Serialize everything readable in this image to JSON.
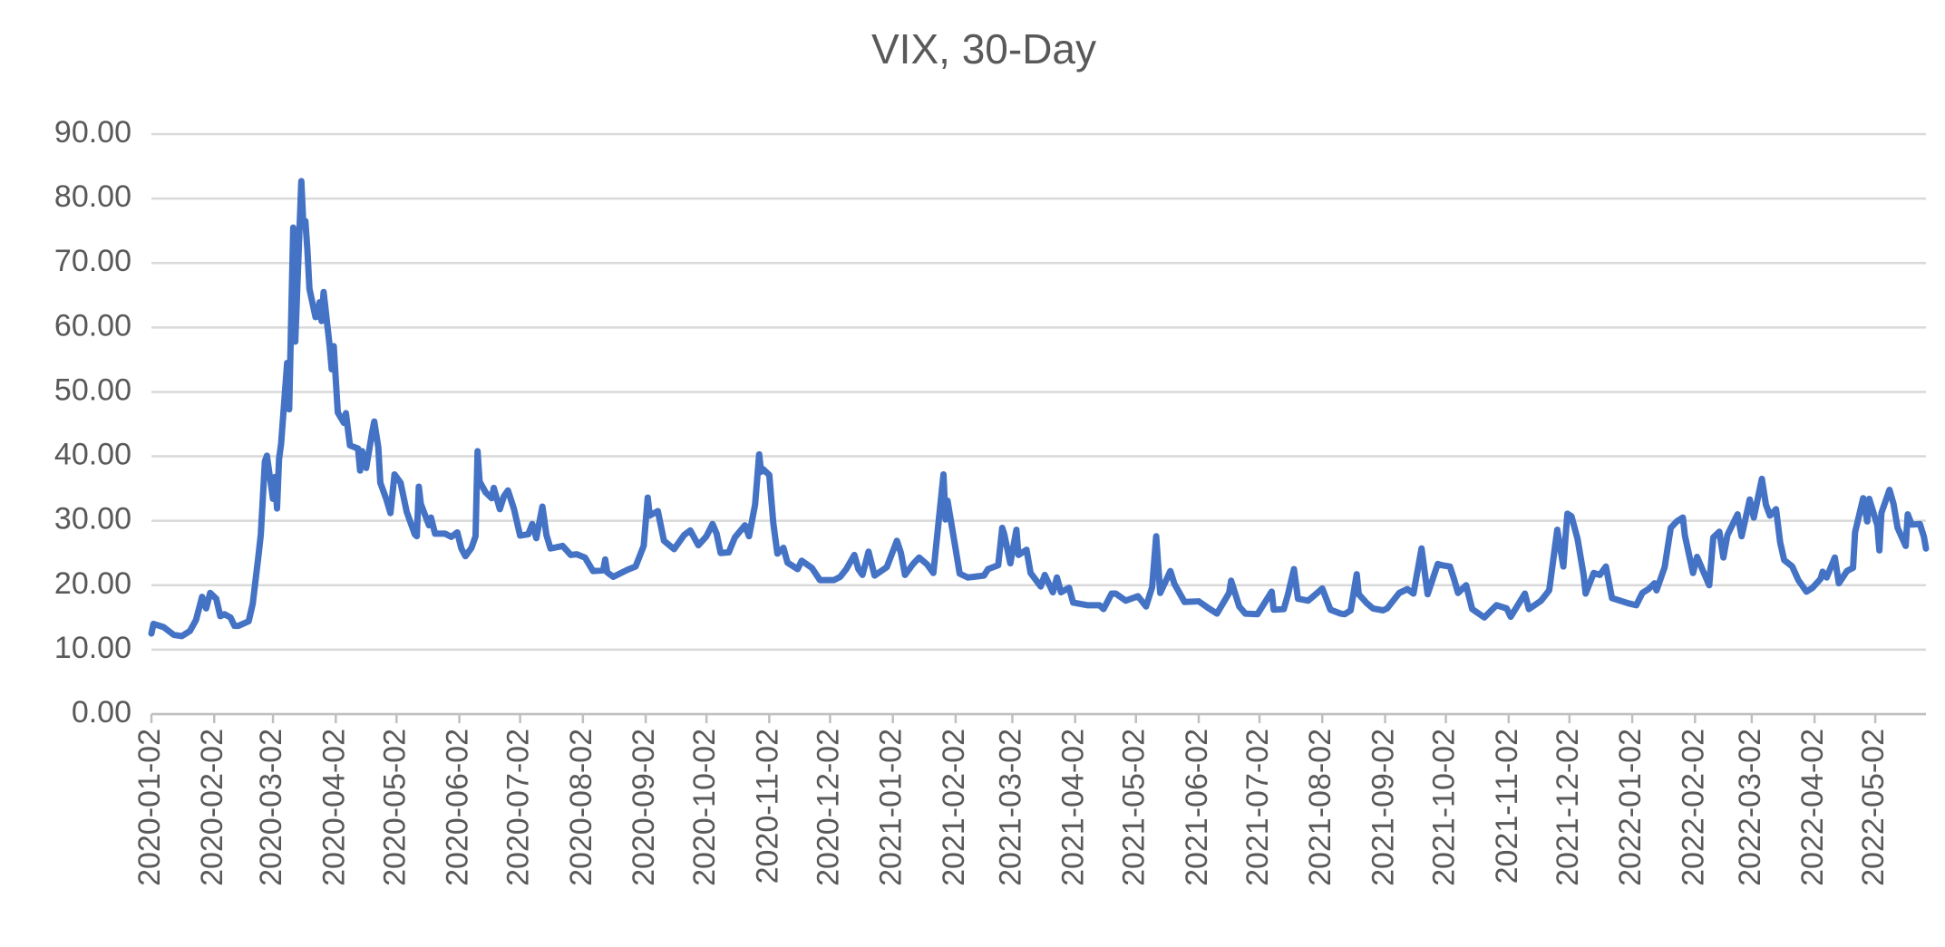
{
  "chart_data": {
    "type": "line",
    "title": "VIX, 30-Day",
    "color": "#4472c4",
    "grid": true,
    "xlim": [
      "2020-01-02",
      "2022-05-27"
    ],
    "xticks": [
      "2020-01-02",
      "2020-02-02",
      "2020-03-02",
      "2020-04-02",
      "2020-05-02",
      "2020-06-02",
      "2020-07-02",
      "2020-08-02",
      "2020-09-02",
      "2020-10-02",
      "2020-11-02",
      "2020-12-02",
      "2021-01-02",
      "2021-02-02",
      "2021-03-02",
      "2021-04-02",
      "2021-05-02",
      "2021-06-02",
      "2021-07-02",
      "2021-08-02",
      "2021-09-02",
      "2021-10-02",
      "2021-11-02",
      "2021-12-02",
      "2022-01-02",
      "2022-02-02",
      "2022-03-02",
      "2022-04-02",
      "2022-05-02"
    ],
    "ylim": [
      0,
      90
    ],
    "yticks": [
      {
        "value": 0,
        "label": "0.00"
      },
      {
        "value": 10,
        "label": "10.00"
      },
      {
        "value": 20,
        "label": "20.00"
      },
      {
        "value": 30,
        "label": "30.00"
      },
      {
        "value": 40,
        "label": "40.00"
      },
      {
        "value": 50,
        "label": "50.00"
      },
      {
        "value": 60,
        "label": "60.00"
      },
      {
        "value": 70,
        "label": "70.00"
      },
      {
        "value": 80,
        "label": "80.00"
      },
      {
        "value": 90,
        "label": "90.00"
      }
    ],
    "x": [
      "2020-01-02",
      "2020-01-03",
      "2020-01-08",
      "2020-01-13",
      "2020-01-17",
      "2020-01-21",
      "2020-01-24",
      "2020-01-27",
      "2020-01-29",
      "2020-01-31",
      "2020-02-03",
      "2020-02-05",
      "2020-02-07",
      "2020-02-10",
      "2020-02-12",
      "2020-02-14",
      "2020-02-19",
      "2020-02-21",
      "2020-02-24",
      "2020-02-25",
      "2020-02-27",
      "2020-02-28",
      "2020-03-02",
      "2020-03-03",
      "2020-03-04",
      "2020-03-05",
      "2020-03-06",
      "2020-03-09",
      "2020-03-10",
      "2020-03-12",
      "2020-03-13",
      "2020-03-16",
      "2020-03-17",
      "2020-03-18",
      "2020-03-19",
      "2020-03-20",
      "2020-03-23",
      "2020-03-24",
      "2020-03-25",
      "2020-03-26",
      "2020-03-27",
      "2020-03-30",
      "2020-03-31",
      "2020-04-01",
      "2020-04-03",
      "2020-04-06",
      "2020-04-07",
      "2020-04-09",
      "2020-04-13",
      "2020-04-14",
      "2020-04-15",
      "2020-04-17",
      "2020-04-20",
      "2020-04-21",
      "2020-04-23",
      "2020-04-24",
      "2020-04-27",
      "2020-04-29",
      "2020-04-30",
      "2020-05-01",
      "2020-05-04",
      "2020-05-07",
      "2020-05-11",
      "2020-05-12",
      "2020-05-13",
      "2020-05-14",
      "2020-05-18",
      "2020-05-19",
      "2020-05-21",
      "2020-05-26",
      "2020-05-29",
      "2020-06-01",
      "2020-06-03",
      "2020-06-05",
      "2020-06-08",
      "2020-06-10",
      "2020-06-11",
      "2020-06-12",
      "2020-06-15",
      "2020-06-18",
      "2020-06-19",
      "2020-06-22",
      "2020-06-24",
      "2020-06-26",
      "2020-06-29",
      "2020-07-02",
      "2020-07-06",
      "2020-07-08",
      "2020-07-10",
      "2020-07-13",
      "2020-07-15",
      "2020-07-17",
      "2020-07-23",
      "2020-07-27",
      "2020-07-30",
      "2020-08-03",
      "2020-08-07",
      "2020-08-12",
      "2020-08-13",
      "2020-08-14",
      "2020-08-17",
      "2020-08-24",
      "2020-08-28",
      "2020-09-01",
      "2020-09-03",
      "2020-09-04",
      "2020-09-08",
      "2020-09-11",
      "2020-09-16",
      "2020-09-21",
      "2020-09-24",
      "2020-09-28",
      "2020-10-02",
      "2020-10-05",
      "2020-10-07",
      "2020-10-09",
      "2020-10-13",
      "2020-10-16",
      "2020-10-21",
      "2020-10-23",
      "2020-10-26",
      "2020-10-28",
      "2020-10-29",
      "2020-10-30",
      "2020-11-02",
      "2020-11-04",
      "2020-11-06",
      "2020-11-09",
      "2020-11-11",
      "2020-11-16",
      "2020-11-18",
      "2020-11-23",
      "2020-11-27",
      "2020-12-04",
      "2020-12-07",
      "2020-12-10",
      "2020-12-14",
      "2020-12-16",
      "2020-12-18",
      "2020-12-21",
      "2020-12-24",
      "2020-12-30",
      "2021-01-04",
      "2021-01-06",
      "2021-01-08",
      "2021-01-12",
      "2021-01-15",
      "2021-01-19",
      "2021-01-22",
      "2021-01-27",
      "2021-01-28",
      "2021-01-29",
      "2021-02-02",
      "2021-02-04",
      "2021-02-08",
      "2021-02-11",
      "2021-02-16",
      "2021-02-18",
      "2021-02-23",
      "2021-02-25",
      "2021-02-26",
      "2021-03-01",
      "2021-03-04",
      "2021-03-05",
      "2021-03-09",
      "2021-03-11",
      "2021-03-16",
      "2021-03-18",
      "2021-03-22",
      "2021-03-24",
      "2021-03-26",
      "2021-03-30",
      "2021-04-01",
      "2021-04-08",
      "2021-04-14",
      "2021-04-16",
      "2021-04-20",
      "2021-04-22",
      "2021-04-27",
      "2021-05-03",
      "2021-05-07",
      "2021-05-10",
      "2021-05-12",
      "2021-05-13",
      "2021-05-14",
      "2021-05-19",
      "2021-05-21",
      "2021-05-26",
      "2021-06-02",
      "2021-06-07",
      "2021-06-11",
      "2021-06-17",
      "2021-06-18",
      "2021-06-22",
      "2021-06-25",
      "2021-07-01",
      "2021-07-08",
      "2021-07-09",
      "2021-07-14",
      "2021-07-16",
      "2021-07-19",
      "2021-07-21",
      "2021-07-26",
      "2021-07-29",
      "2021-08-02",
      "2021-08-06",
      "2021-08-11",
      "2021-08-13",
      "2021-08-16",
      "2021-08-19",
      "2021-08-20",
      "2021-08-24",
      "2021-08-27",
      "2021-09-01",
      "2021-09-03",
      "2021-09-09",
      "2021-09-13",
      "2021-09-16",
      "2021-09-20",
      "2021-09-23",
      "2021-09-28",
      "2021-09-30",
      "2021-10-04",
      "2021-10-06",
      "2021-10-08",
      "2021-10-12",
      "2021-10-15",
      "2021-10-21",
      "2021-10-27",
      "2021-11-01",
      "2021-11-03",
      "2021-11-10",
      "2021-11-12",
      "2021-11-18",
      "2021-11-22",
      "2021-11-26",
      "2021-11-29",
      "2021-11-30",
      "2021-12-01",
      "2021-12-03",
      "2021-12-06",
      "2021-12-09",
      "2021-12-10",
      "2021-12-14",
      "2021-12-17",
      "2021-12-20",
      "2021-12-23",
      "2021-12-31",
      "2022-01-04",
      "2022-01-07",
      "2022-01-10",
      "2022-01-13",
      "2022-01-14",
      "2022-01-18",
      "2022-01-21",
      "2022-01-24",
      "2022-01-27",
      "2022-01-28",
      "2022-02-01",
      "2022-02-03",
      "2022-02-09",
      "2022-02-11",
      "2022-02-14",
      "2022-02-16",
      "2022-02-18",
      "2022-02-23",
      "2022-02-25",
      "2022-03-01",
      "2022-03-03",
      "2022-03-07",
      "2022-03-09",
      "2022-03-11",
      "2022-03-14",
      "2022-03-16",
      "2022-03-18",
      "2022-03-22",
      "2022-03-25",
      "2022-03-29",
      "2022-04-01",
      "2022-04-05",
      "2022-04-06",
      "2022-04-08",
      "2022-04-12",
      "2022-04-14",
      "2022-04-18",
      "2022-04-21",
      "2022-04-22",
      "2022-04-26",
      "2022-04-28",
      "2022-04-29",
      "2022-05-03",
      "2022-05-04",
      "2022-05-05",
      "2022-05-09",
      "2022-05-11",
      "2022-05-13",
      "2022-05-17",
      "2022-05-18",
      "2022-05-20",
      "2022-05-24",
      "2022-05-26",
      "2022-05-27"
    ],
    "values": [
      12.5,
      14.0,
      13.5,
      12.3,
      12.1,
      12.9,
      14.6,
      18.2,
      16.4,
      18.8,
      17.9,
      15.2,
      15.5,
      15.0,
      13.7,
      13.7,
      14.4,
      17.1,
      25.0,
      27.9,
      39.2,
      40.1,
      33.4,
      36.8,
      31.9,
      39.6,
      41.9,
      54.5,
      47.3,
      75.5,
      57.8,
      82.7,
      75.9,
      76.5,
      72.0,
      66.0,
      61.6,
      61.7,
      63.9,
      61.0,
      65.5,
      57.1,
      53.5,
      57.1,
      46.8,
      45.2,
      46.7,
      41.7,
      41.2,
      37.8,
      40.8,
      38.2,
      43.8,
      45.4,
      41.4,
      35.9,
      33.3,
      31.2,
      34.2,
      37.2,
      35.9,
      31.4,
      27.9,
      27.6,
      35.3,
      32.6,
      29.3,
      30.5,
      28.0,
      28.0,
      27.5,
      28.2,
      25.7,
      24.5,
      25.8,
      27.6,
      40.8,
      36.1,
      34.4,
      33.5,
      35.1,
      31.8,
      33.8,
      34.7,
      31.8,
      27.7,
      27.9,
      29.5,
      27.3,
      32.2,
      27.8,
      25.7,
      26.1,
      24.7,
      24.8,
      24.3,
      22.2,
      22.3,
      24.0,
      22.0,
      21.3,
      22.4,
      22.9,
      26.1,
      33.6,
      30.8,
      31.5,
      26.9,
      25.6,
      27.8,
      28.5,
      26.2,
      27.6,
      29.5,
      28.0,
      25.0,
      25.1,
      27.4,
      29.3,
      27.6,
      32.5,
      40.3,
      37.6,
      38.0,
      37.1,
      29.6,
      24.9,
      25.8,
      23.5,
      22.5,
      23.8,
      22.7,
      20.8,
      20.8,
      21.3,
      22.5,
      24.7,
      22.5,
      21.6,
      25.2,
      21.5,
      22.8,
      26.9,
      25.0,
      21.6,
      23.3,
      24.3,
      23.2,
      21.9,
      37.2,
      30.2,
      33.1,
      25.6,
      21.8,
      21.2,
      21.3,
      21.5,
      22.5,
      23.1,
      28.9,
      27.9,
      23.4,
      28.6,
      24.7,
      25.5,
      21.9,
      19.8,
      21.6,
      18.9,
      21.2,
      18.9,
      19.6,
      17.3,
      16.9,
      16.9,
      16.3,
      18.7,
      18.7,
      17.6,
      18.3,
      16.7,
      19.7,
      27.6,
      23.1,
      18.8,
      22.2,
      20.2,
      17.4,
      17.5,
      16.4,
      15.6,
      18.8,
      20.7,
      16.7,
      15.6,
      15.5,
      19.0,
      16.2,
      16.3,
      18.5,
      22.5,
      17.9,
      17.6,
      18.4,
      19.5,
      16.2,
      15.6,
      15.5,
      16.1,
      21.7,
      18.6,
      17.2,
      16.4,
      16.1,
      16.4,
      18.8,
      19.4,
      18.7,
      25.7,
      18.6,
      23.3,
      23.1,
      22.9,
      21.0,
      18.8,
      20.0,
      16.3,
      15.0,
      16.9,
      16.4,
      15.1,
      18.7,
      16.3,
      17.6,
      19.2,
      28.6,
      22.9,
      27.2,
      31.1,
      30.7,
      27.2,
      21.6,
      18.7,
      21.9,
      21.6,
      22.9,
      18.0,
      17.2,
      16.9,
      18.8,
      19.4,
      20.3,
      19.2,
      22.8,
      28.9,
      29.9,
      30.5,
      27.7,
      21.9,
      24.4,
      20.0,
      27.4,
      28.3,
      24.3,
      27.8,
      31.0,
      27.6,
      33.3,
      30.5,
      36.5,
      32.5,
      30.8,
      31.8,
      26.7,
      23.9,
      22.9,
      20.8,
      19.0,
      19.6,
      21.0,
      22.1,
      21.2,
      24.3,
      20.3,
      22.2,
      22.7,
      28.2,
      33.5,
      29.9,
      33.4,
      29.3,
      25.4,
      31.2,
      34.8,
      32.6,
      28.9,
      26.1,
      31.0,
      29.4,
      29.5,
      27.5,
      25.7
    ]
  }
}
